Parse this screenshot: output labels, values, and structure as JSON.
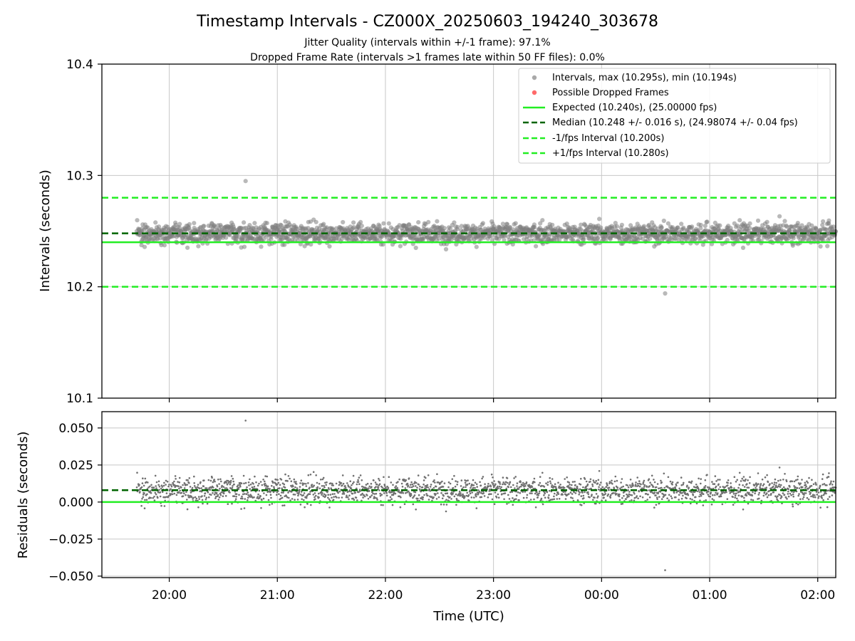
{
  "chart_data": [
    {
      "type": "scatter",
      "panel": "top",
      "title": "Timestamp Intervals - CZ000X_20250603_194240_303678",
      "subtitle_1": "Jitter Quality (intervals within +/-1 frame): 97.1%",
      "subtitle_2": "Dropped Frame Rate (intervals >1 frames late within 50 FF files): 0.0%",
      "xlabel": "",
      "ylabel": "Intervals (seconds)",
      "ylim": [
        10.1,
        10.4
      ],
      "yticks": [
        "10.1",
        "10.2",
        "10.3",
        "10.4"
      ],
      "xlim": [
        "19:42",
        "02:10"
      ],
      "xticks": [
        "20:00",
        "21:00",
        "22:00",
        "23:00",
        "00:00",
        "01:00",
        "02:00"
      ],
      "grid": true,
      "legend_placement": "upper-right",
      "legend": [
        {
          "label": "Intervals, max (10.295s), min (10.194s)",
          "kind": "marker",
          "color": "#a0a0a0"
        },
        {
          "label": "Possible Dropped Frames",
          "kind": "marker",
          "color": "#ff5a5a"
        },
        {
          "label": "Expected (10.240s), (25.00000 fps)",
          "kind": "line",
          "color": "#22ee22",
          "dash": "solid"
        },
        {
          "label": "Median (10.248 +/- 0.016 s), (24.98074 +/- 0.04 fps)",
          "kind": "line",
          "color": "#006400",
          "dash": "dashed"
        },
        {
          "label": "-1/fps Interval (10.200s)",
          "kind": "line",
          "color": "#22ee22",
          "dash": "dashed"
        },
        {
          "label": "+1/fps Interval (10.280s)",
          "kind": "line",
          "color": "#22ee22",
          "dash": "dashed"
        }
      ],
      "hlines": {
        "expected": 10.24,
        "median": 10.248,
        "minus_one_fps": 10.2,
        "plus_one_fps": 10.28
      },
      "series": [
        {
          "name": "Intervals, max (10.295s), min (10.194s)",
          "x_range": [
            "19:42",
            "02:10"
          ],
          "count": 2250,
          "y_min": 10.194,
          "y_max": 10.295,
          "y_median": 10.248
        },
        {
          "name": "Possible Dropped Frames",
          "values": []
        }
      ],
      "color_points": "#808080"
    },
    {
      "type": "scatter",
      "panel": "bottom",
      "xlabel": "Time (UTC)",
      "ylabel": "Residuals (seconds)",
      "ylim": [
        -0.051,
        0.061
      ],
      "yticks": [
        "−0.050",
        "−0.025",
        "0.000",
        "0.025",
        "0.050"
      ],
      "xticks": [
        "20:00",
        "21:00",
        "22:00",
        "23:00",
        "00:00",
        "01:00",
        "02:00"
      ],
      "grid": true,
      "hlines": {
        "zero": 0.0,
        "median": 0.008
      },
      "series": [
        {
          "name": "Residuals",
          "x_range": [
            "19:42",
            "02:10"
          ],
          "count": 2250,
          "y_min": -0.046,
          "y_max": 0.055
        }
      ],
      "color_points": "#707070"
    }
  ]
}
